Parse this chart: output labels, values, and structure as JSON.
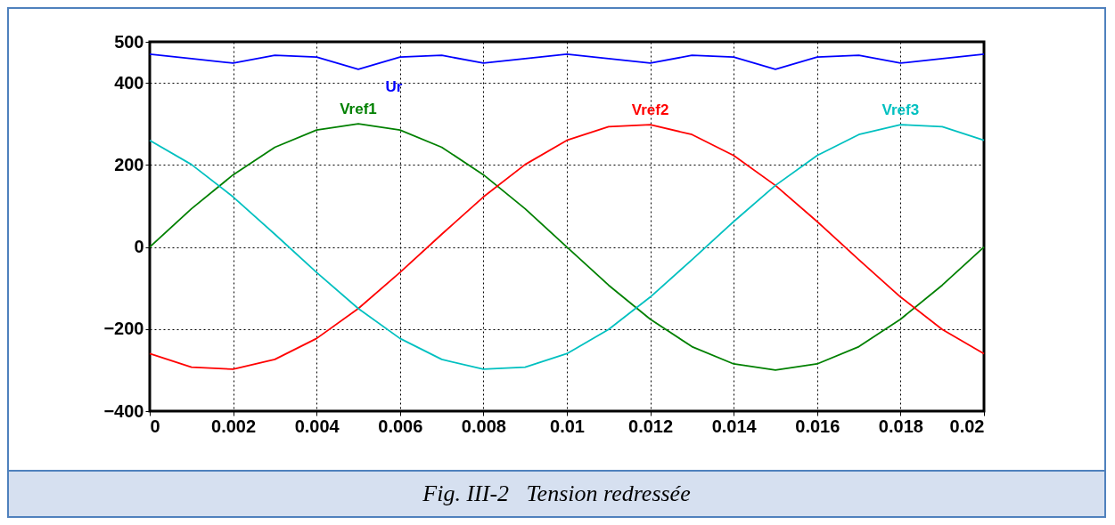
{
  "chart_data": {
    "type": "line",
    "title": "Fig. III-2   Tension redressée",
    "x": [
      0,
      0.001,
      0.002,
      0.003,
      0.004,
      0.005,
      0.006,
      0.007,
      0.008,
      0.009,
      0.01,
      0.011,
      0.012,
      0.013,
      0.014,
      0.015,
      0.016,
      0.017,
      0.018,
      0.019,
      0.02
    ],
    "series": [
      {
        "name": "Ur",
        "color": "#0000ff",
        "values": [
          470,
          459,
          448,
          467,
          463,
          433,
          463,
          467,
          448,
          459,
          470,
          459,
          448,
          467,
          463,
          433,
          463,
          467,
          448,
          459,
          470
        ]
      },
      {
        "name": "Vref1",
        "color": "#008000",
        "values": [
          0,
          93,
          176,
          243,
          285,
          300,
          285,
          243,
          176,
          93,
          0,
          -93,
          -176,
          -243,
          -285,
          -300,
          -285,
          -243,
          -176,
          -93,
          0
        ]
      },
      {
        "name": "Vref2",
        "color": "#ff0000",
        "values": [
          -260,
          -293,
          -298,
          -274,
          -223,
          -150,
          -62,
          31,
          122,
          201,
          260,
          293,
          298,
          274,
          223,
          150,
          62,
          -31,
          -122,
          -201,
          -260
        ]
      },
      {
        "name": "Vref3",
        "color": "#00c0c0",
        "values": [
          260,
          201,
          122,
          31,
          -62,
          -150,
          -223,
          -274,
          -298,
          -293,
          -260,
          -201,
          -122,
          -31,
          62,
          150,
          223,
          274,
          298,
          293,
          260
        ]
      }
    ],
    "xlim": [
      0,
      0.02
    ],
    "xticks": [
      0,
      0.002,
      0.004,
      0.006,
      0.008,
      0.01,
      0.012,
      0.014,
      0.016,
      0.018,
      0.02
    ],
    "ylim": [
      -400,
      500
    ],
    "yticks": [
      -400,
      -200,
      0,
      200,
      400,
      500
    ],
    "grid": true,
    "legend": false,
    "marker": "none",
    "line_style": "solid"
  }
}
